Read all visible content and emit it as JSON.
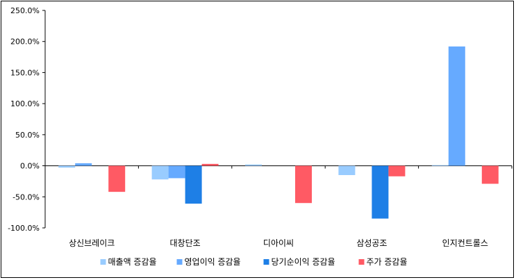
{
  "chart_data": {
    "type": "bar",
    "title": "",
    "xlabel": "",
    "ylabel": "",
    "ylim": [
      -100,
      250
    ],
    "yticks": [
      -100,
      -50,
      0,
      50,
      100,
      150,
      200,
      250
    ],
    "ytick_labels": [
      "-100.0%",
      "-50.0%",
      "0.0%",
      "50.0%",
      "100.0%",
      "150.0%",
      "200.0%",
      "250.0%"
    ],
    "grid": false,
    "legend_position": "bottom",
    "categories": [
      "상신브레이크",
      "대창단조",
      "디아이씨",
      "삼성공조",
      "인지컨트롤스"
    ],
    "series": [
      {
        "name": "매출액 증감율",
        "color": "#99ccff",
        "values": [
          -3,
          -22,
          2,
          -15,
          1
        ]
      },
      {
        "name": "영업이익 증감율",
        "color": "#66aaff",
        "values": [
          4,
          -20,
          0,
          0,
          192
        ]
      },
      {
        "name": "당기순이익 증감율",
        "color": "#1e7fe6",
        "values": [
          0,
          -61,
          0,
          -85,
          0
        ]
      },
      {
        "name": "주가 증감율",
        "color": "#ff5a64",
        "values": [
          -42,
          3,
          -60,
          -17,
          -29
        ]
      }
    ]
  }
}
